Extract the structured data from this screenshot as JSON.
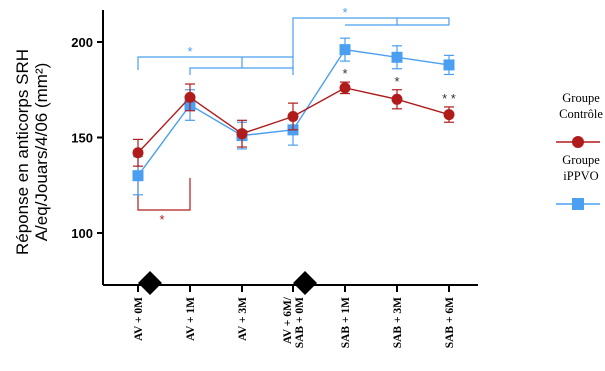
{
  "chart_data": {
    "type": "line",
    "ylabel_lines": [
      "Réponse en anticorps SRH",
      "A/eq/Jouars/4/06 (mm²)"
    ],
    "ylim": [
      90,
      210
    ],
    "yticks": [
      100,
      150,
      200
    ],
    "categories": [
      [
        "AV + 0M"
      ],
      [
        "AV + 1M"
      ],
      [
        "AV + 3M"
      ],
      [
        "AV + 6M/",
        "SAB + 0M"
      ],
      [
        "SAB + 1M"
      ],
      [
        "SAB + 3M"
      ],
      [
        "SAB + 6M"
      ]
    ],
    "series": [
      {
        "name_lines": [
          "Groupe",
          "Contrôle"
        ],
        "color": "#b01c1c",
        "marker": "circle",
        "values": [
          142,
          171,
          152,
          161,
          176,
          170,
          162
        ],
        "errors": [
          7,
          7,
          7,
          7,
          3,
          5,
          4
        ]
      },
      {
        "name_lines": [
          "Groupe",
          "iPPVO"
        ],
        "color": "#4a9ff0",
        "marker": "square",
        "values": [
          130,
          167,
          151,
          154,
          196,
          192,
          188
        ],
        "errors": [
          10,
          8,
          7,
          8,
          6,
          6,
          5
        ]
      }
    ],
    "annotations": {
      "point_stars": [
        {
          "index": 4,
          "text": "*"
        },
        {
          "index": 5,
          "text": "*"
        },
        {
          "index": 6,
          "text": "* *"
        }
      ],
      "blue_bracket_stars": [
        "*",
        "*"
      ],
      "red_bracket_star": "*",
      "vaccination_markers_at": [
        0,
        3
      ]
    },
    "grid": false,
    "legend_position": "right"
  }
}
